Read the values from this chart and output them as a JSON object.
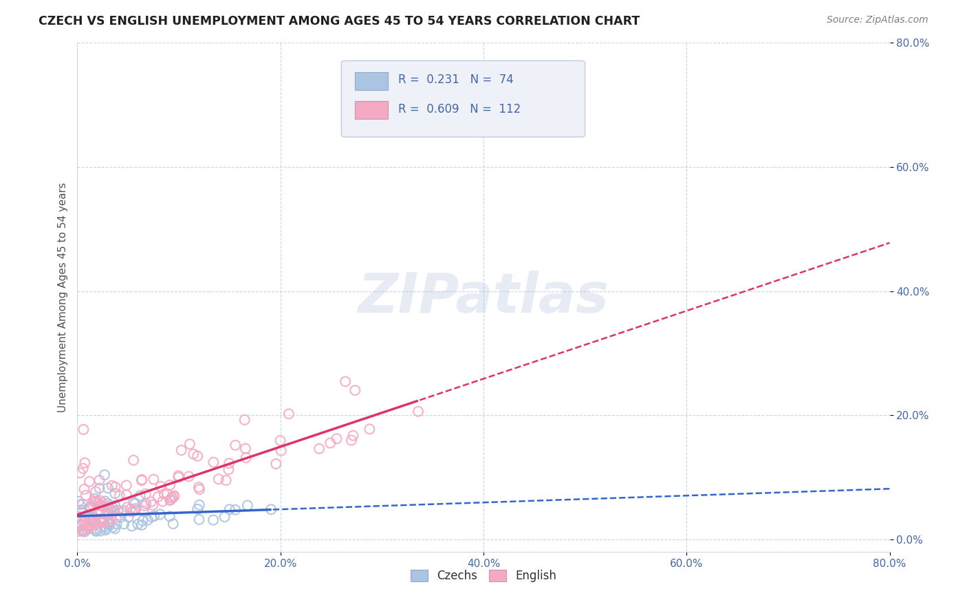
{
  "title": "CZECH VS ENGLISH UNEMPLOYMENT AMONG AGES 45 TO 54 YEARS CORRELATION CHART",
  "source": "Source: ZipAtlas.com",
  "ylabel": "Unemployment Among Ages 45 to 54 years",
  "xlim": [
    0.0,
    0.8
  ],
  "ylim": [
    -0.02,
    0.8
  ],
  "xticks": [
    0.0,
    0.2,
    0.4,
    0.6,
    0.8
  ],
  "yticks": [
    0.0,
    0.2,
    0.4,
    0.6,
    0.8
  ],
  "xticklabels": [
    "0.0%",
    "20.0%",
    "40.0%",
    "60.0%",
    "80.0%"
  ],
  "yticklabels": [
    "0.0%",
    "20.0%",
    "40.0%",
    "60.0%",
    "80.0%"
  ],
  "czech_R": 0.231,
  "czech_N": 74,
  "english_R": 0.609,
  "english_N": 112,
  "czech_color": "#aac4e2",
  "english_color": "#f5aac4",
  "czech_line_color": "#3366cc",
  "english_line_color": "#dd3366",
  "background_color": "#ffffff",
  "grid_color": "#c8d4e8",
  "watermark": "ZIPatlas",
  "legend_box_color": "#eef2f8",
  "title_color": "#202020",
  "axis_label_color": "#4466aa",
  "tick_color": "#4466aa",
  "source_color": "#808080"
}
